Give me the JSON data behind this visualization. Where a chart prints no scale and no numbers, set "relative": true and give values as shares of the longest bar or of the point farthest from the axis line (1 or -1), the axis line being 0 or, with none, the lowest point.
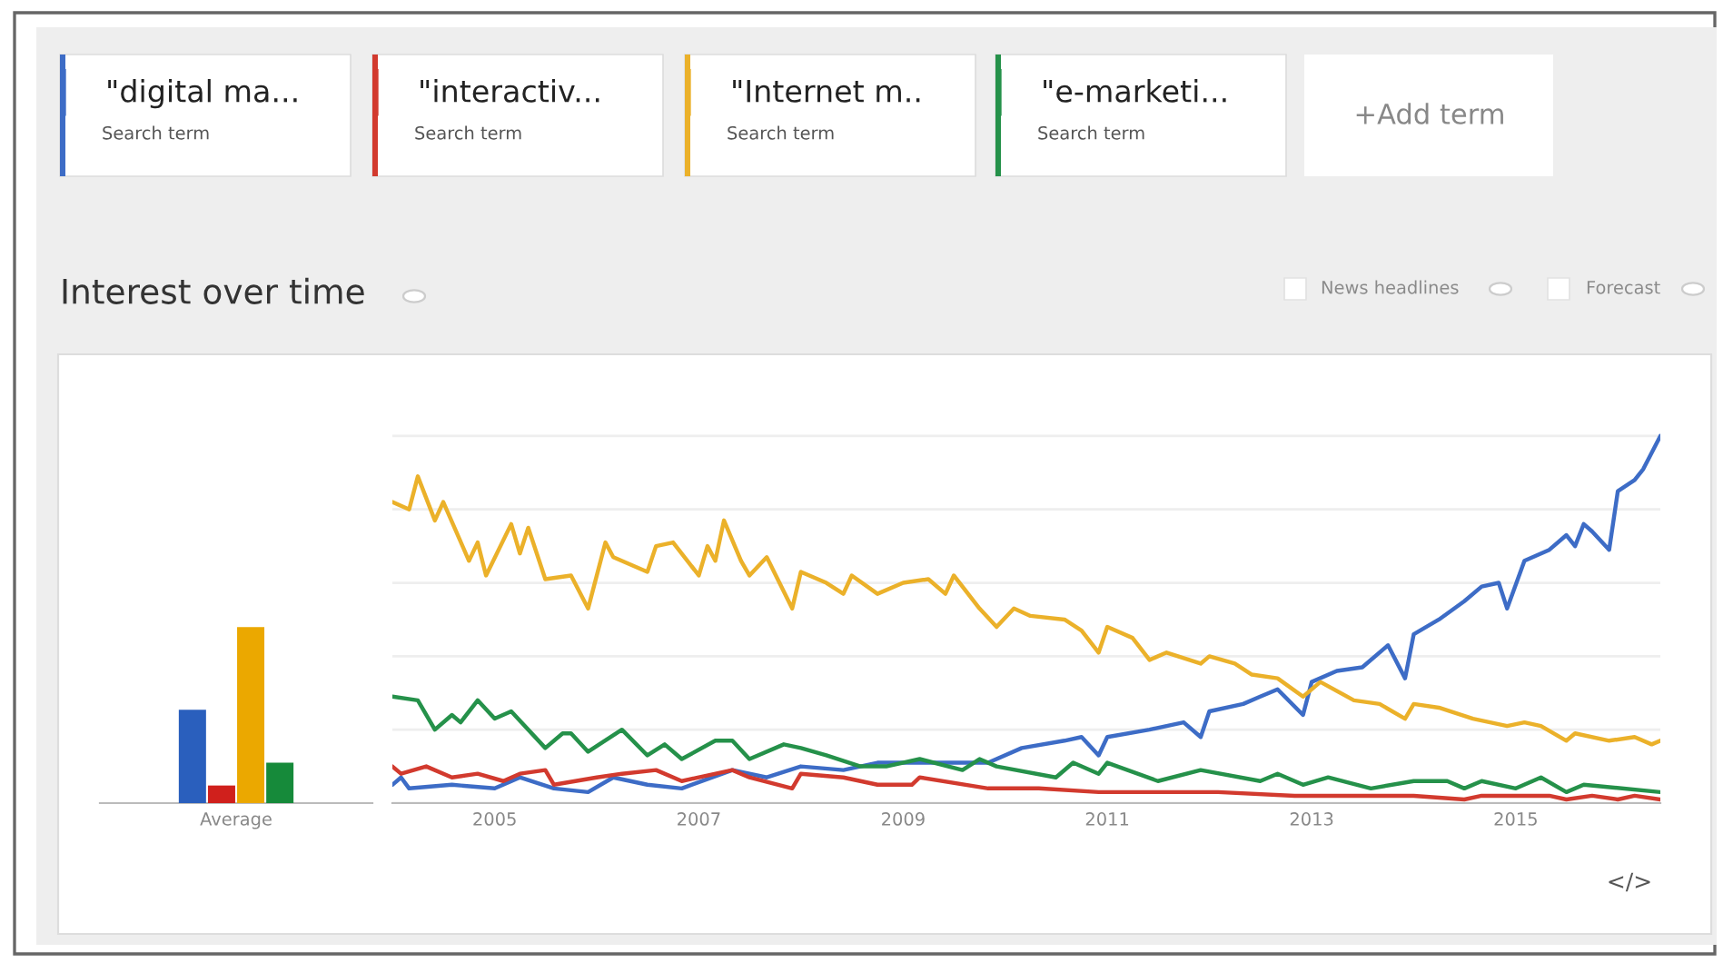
{
  "chart_data": [
    {
      "type": "bar",
      "relative": true,
      "tick_labels": "x",
      "categories": [
        "Average"
      ],
      "series": [
        {
          "color": "#2a5fbd",
          "values": [
            0.53
          ]
        },
        {
          "color": "#d0201c",
          "values": [
            0.1
          ]
        },
        {
          "color": "#eba800",
          "values": [
            1.0
          ]
        },
        {
          "color": "#168a3a",
          "values": [
            0.23
          ]
        }
      ]
    },
    {
      "type": "line",
      "title": "Interest over time",
      "relative": true,
      "tick_labels": "x",
      "grid": "y",
      "legend": "top",
      "xlim": [
        "2004-01",
        "2016-06"
      ],
      "xticks": [
        "2005",
        "2007",
        "2009",
        "2011",
        "2013",
        "2015"
      ],
      "annotations": [
        "Search term",
        "Search term",
        "Search term",
        "Search term",
        "+Add term",
        "News headlines",
        "Forecast",
        "</>"
      ],
      "series": [
        {
          "name": "\"digital ma...",
          "color": "#3d6cc6",
          "x": [
            "2004-01",
            "2004-02",
            "2004-03",
            "2004-08",
            "2005-01",
            "2005-04",
            "2005-08",
            "2005-12",
            "2006-03",
            "2006-07",
            "2006-11",
            "2007-05",
            "2007-09",
            "2008-01",
            "2008-06",
            "2008-10",
            "2009-01",
            "2009-04",
            "2009-11",
            "2010-03",
            "2010-08",
            "2010-10",
            "2010-12",
            "2011-01",
            "2011-06",
            "2011-10",
            "2011-12",
            "2012-01",
            "2012-05",
            "2012-07",
            "2012-09",
            "2012-12",
            "2013-01",
            "2013-04",
            "2013-07",
            "2013-10",
            "2013-12",
            "2014-01",
            "2014-04",
            "2014-07",
            "2014-09",
            "2014-11",
            "2014-12",
            "2015-02",
            "2015-05",
            "2015-07",
            "2015-08",
            "2015-09",
            "2015-10",
            "2015-12",
            "2016-01",
            "2016-03",
            "2016-04",
            "2016-06"
          ],
          "values": [
            0.05,
            0.07,
            0.04,
            0.05,
            0.04,
            0.07,
            0.04,
            0.03,
            0.07,
            0.05,
            0.04,
            0.09,
            0.07,
            0.1,
            0.09,
            0.11,
            0.11,
            0.11,
            0.11,
            0.15,
            0.17,
            0.18,
            0.13,
            0.18,
            0.2,
            0.22,
            0.18,
            0.25,
            0.27,
            0.29,
            0.31,
            0.24,
            0.33,
            0.36,
            0.37,
            0.43,
            0.34,
            0.46,
            0.5,
            0.55,
            0.59,
            0.6,
            0.53,
            0.66,
            0.69,
            0.73,
            0.7,
            0.76,
            0.74,
            0.69,
            0.85,
            0.88,
            0.91,
            1.0
          ]
        },
        {
          "name": "\"interactiv...",
          "color": "#d23a2e",
          "x": [
            "2004-01",
            "2004-02",
            "2004-05",
            "2004-08",
            "2004-11",
            "2005-02",
            "2005-04",
            "2005-07",
            "2005-08",
            "2006-01",
            "2006-04",
            "2006-08",
            "2006-11",
            "2007-05",
            "2007-07",
            "2007-12",
            "2008-01",
            "2008-06",
            "2008-10",
            "2009-02",
            "2009-03",
            "2009-11",
            "2010-05",
            "2010-12",
            "2012-02",
            "2012-11",
            "2013-06",
            "2014-01",
            "2014-07",
            "2014-09",
            "2015-05",
            "2015-07",
            "2015-10",
            "2016-01",
            "2016-03",
            "2016-06"
          ],
          "values": [
            0.1,
            0.08,
            0.1,
            0.07,
            0.08,
            0.06,
            0.08,
            0.09,
            0.05,
            0.07,
            0.08,
            0.09,
            0.06,
            0.09,
            0.07,
            0.04,
            0.08,
            0.07,
            0.05,
            0.05,
            0.07,
            0.04,
            0.04,
            0.03,
            0.03,
            0.02,
            0.02,
            0.02,
            0.01,
            0.02,
            0.02,
            0.01,
            0.02,
            0.01,
            0.02,
            0.01
          ]
        },
        {
          "name": "\"Internet m..",
          "color": "#ebb12a",
          "x": [
            "2004-01",
            "2004-03",
            "2004-04",
            "2004-06",
            "2004-07",
            "2004-10",
            "2004-11",
            "2004-12",
            "2005-03",
            "2005-04",
            "2005-05",
            "2005-07",
            "2005-10",
            "2005-12",
            "2006-02",
            "2006-03",
            "2006-07",
            "2006-08",
            "2006-10",
            "2007-01",
            "2007-02",
            "2007-03",
            "2007-04",
            "2007-06",
            "2007-07",
            "2007-09",
            "2007-12",
            "2008-01",
            "2008-04",
            "2008-06",
            "2008-07",
            "2008-10",
            "2009-01",
            "2009-04",
            "2009-06",
            "2009-07",
            "2009-10",
            "2009-12",
            "2010-02",
            "2010-04",
            "2010-08",
            "2010-10",
            "2010-12",
            "2011-01",
            "2011-04",
            "2011-06",
            "2011-08",
            "2011-12",
            "2012-01",
            "2012-04",
            "2012-06",
            "2012-09",
            "2012-12",
            "2013-02",
            "2013-06",
            "2013-09",
            "2013-12",
            "2014-01",
            "2014-04",
            "2014-08",
            "2014-12",
            "2015-02",
            "2015-04",
            "2015-07",
            "2015-08",
            "2015-12",
            "2016-03",
            "2016-05",
            "2016-06"
          ],
          "values": [
            0.82,
            0.8,
            0.89,
            0.77,
            0.82,
            0.66,
            0.71,
            0.62,
            0.76,
            0.68,
            0.75,
            0.61,
            0.62,
            0.53,
            0.71,
            0.67,
            0.63,
            0.7,
            0.71,
            0.62,
            0.7,
            0.66,
            0.77,
            0.66,
            0.62,
            0.67,
            0.53,
            0.63,
            0.6,
            0.57,
            0.62,
            0.57,
            0.6,
            0.61,
            0.57,
            0.62,
            0.53,
            0.48,
            0.53,
            0.51,
            0.5,
            0.47,
            0.41,
            0.48,
            0.45,
            0.39,
            0.41,
            0.38,
            0.4,
            0.38,
            0.35,
            0.34,
            0.29,
            0.33,
            0.28,
            0.27,
            0.23,
            0.27,
            0.26,
            0.23,
            0.21,
            0.22,
            0.21,
            0.17,
            0.19,
            0.17,
            0.18,
            0.16,
            0.17
          ]
        },
        {
          "name": "\"e-marketi...",
          "color": "#25914a",
          "x": [
            "2004-01",
            "2004-04",
            "2004-06",
            "2004-08",
            "2004-09",
            "2004-11",
            "2005-01",
            "2005-03",
            "2005-07",
            "2005-09",
            "2005-10",
            "2005-12",
            "2006-04",
            "2006-07",
            "2006-09",
            "2006-11",
            "2007-03",
            "2007-05",
            "2007-07",
            "2007-11",
            "2008-01",
            "2008-04",
            "2008-08",
            "2008-11",
            "2009-03",
            "2009-08",
            "2009-10",
            "2009-12",
            "2010-07",
            "2010-09",
            "2010-12",
            "2011-01",
            "2011-07",
            "2011-12",
            "2012-07",
            "2012-09",
            "2012-12",
            "2013-03",
            "2013-08",
            "2014-01",
            "2014-05",
            "2014-07",
            "2014-09",
            "2015-01",
            "2015-04",
            "2015-07",
            "2015-09",
            "2016-06"
          ],
          "values": [
            0.29,
            0.28,
            0.2,
            0.24,
            0.22,
            0.28,
            0.23,
            0.25,
            0.15,
            0.19,
            0.19,
            0.14,
            0.2,
            0.13,
            0.16,
            0.12,
            0.17,
            0.17,
            0.12,
            0.16,
            0.15,
            0.13,
            0.1,
            0.1,
            0.12,
            0.09,
            0.12,
            0.1,
            0.07,
            0.11,
            0.08,
            0.11,
            0.06,
            0.09,
            0.06,
            0.08,
            0.05,
            0.07,
            0.04,
            0.06,
            0.06,
            0.04,
            0.06,
            0.04,
            0.07,
            0.03,
            0.05,
            0.03
          ]
        }
      ]
    }
  ]
}
